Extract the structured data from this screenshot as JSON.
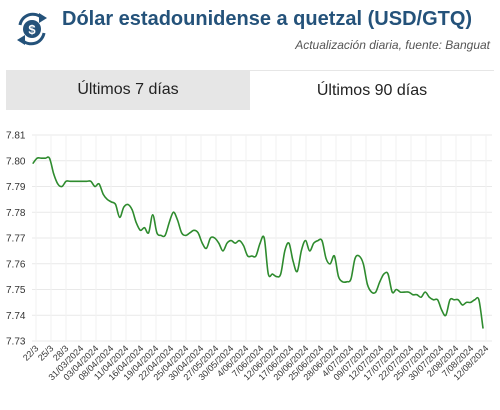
{
  "header": {
    "title": "Dólar estadounidense a quetzal (USD/GTQ)",
    "subtitle": "Actualización diaria, fuente: Banguat",
    "logo_icon": "dollar-exchange-icon",
    "brand_color": "#24527a"
  },
  "tabs": [
    {
      "label": "Últimos 7 días",
      "active": false
    },
    {
      "label": "Últimos 90 días",
      "active": true
    }
  ],
  "chart_data": {
    "type": "line",
    "series_color": "#2e8b2e",
    "grid": true,
    "ylim": [
      7.73,
      7.81
    ],
    "yticks": [
      "7.73",
      "7.74",
      "7.75",
      "7.76",
      "7.77",
      "7.78",
      "7.79",
      "7.80",
      "7.81"
    ],
    "xtick_labels": [
      "22/3",
      "25/3",
      "28/3",
      "31/03/2024",
      "03/04/2024",
      "08/04/2024",
      "11/04/2024",
      "16/04/2024",
      "19/04/2024",
      "22/04/2024",
      "25/04/2024",
      "30/04/2024",
      "27/05/2024",
      "30/05/2024",
      "4/06/2024",
      "7/06/2024",
      "12/06/2024",
      "17/06/2024",
      "20/06/2024",
      "25/06/2024",
      "28/06/2024",
      "4/07/2024",
      "09/07/2024",
      "12/07/2024",
      "17/07/2024",
      "22/07/2024",
      "25/07/2024",
      "30/07/2024",
      "2/08/2024",
      "7/08/2024",
      "12/08/2024"
    ],
    "values": [
      7.799,
      7.801,
      7.801,
      7.801,
      7.801,
      7.795,
      7.791,
      7.79,
      7.792,
      7.792,
      7.792,
      7.792,
      7.792,
      7.792,
      7.792,
      7.79,
      7.791,
      7.787,
      7.785,
      7.784,
      7.783,
      7.778,
      7.782,
      7.783,
      7.781,
      7.776,
      7.773,
      7.774,
      7.772,
      7.779,
      7.772,
      7.771,
      7.771,
      7.776,
      7.78,
      7.777,
      7.772,
      7.771,
      7.772,
      7.773,
      7.772,
      7.768,
      7.766,
      7.77,
      7.77,
      7.768,
      7.765,
      7.768,
      7.769,
      7.768,
      7.769,
      7.767,
      7.763,
      7.763,
      7.763,
      7.768,
      7.77,
      7.756,
      7.756,
      7.755,
      7.756,
      7.765,
      7.768,
      7.761,
      7.757,
      7.765,
      7.769,
      7.765,
      7.768,
      7.769,
      7.769,
      7.762,
      7.76,
      7.763,
      7.755,
      7.753,
      7.753,
      7.754,
      7.762,
      7.763,
      7.76,
      7.752,
      7.749,
      7.749,
      7.753,
      7.756,
      7.756,
      7.749,
      7.75,
      7.749,
      7.749,
      7.749,
      7.748,
      7.748,
      7.747,
      7.749,
      7.747,
      7.746,
      7.746,
      7.742,
      7.74,
      7.746,
      7.746,
      7.746,
      7.744,
      7.745,
      7.745,
      7.746,
      7.746,
      7.735
    ]
  }
}
